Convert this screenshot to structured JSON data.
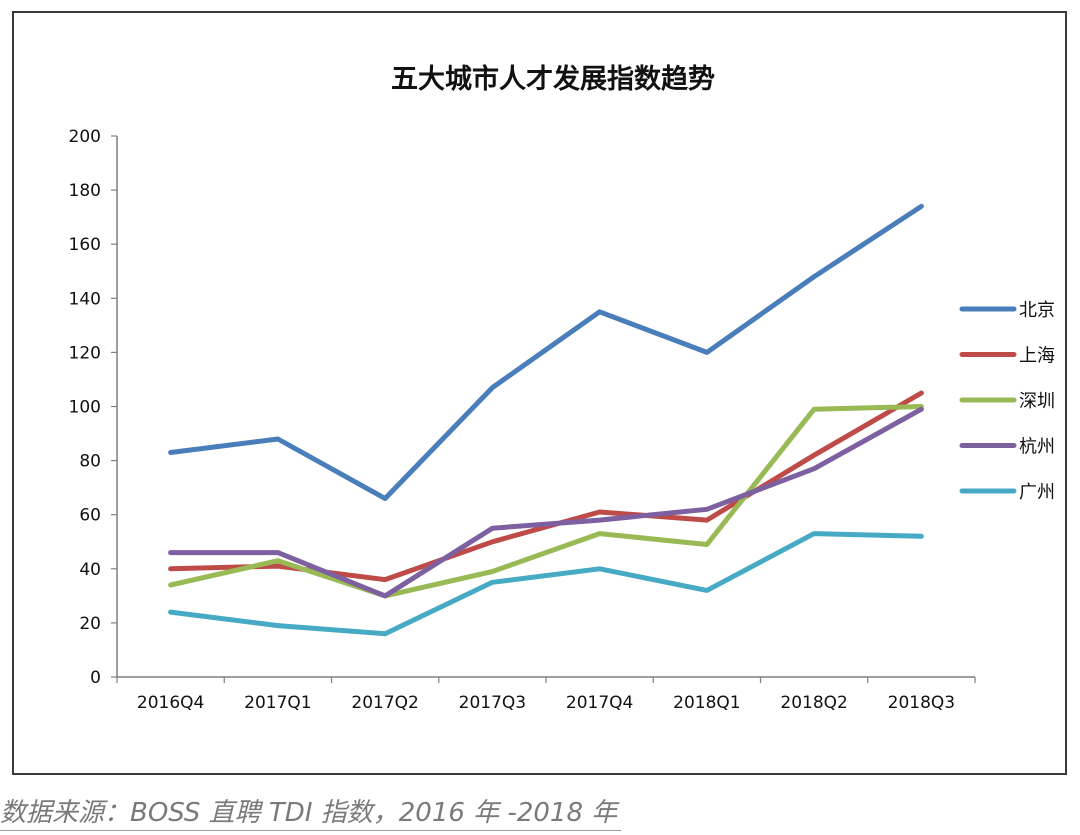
{
  "chart_data": {
    "type": "line",
    "title": "五大城市人才发展指数趋势",
    "categories": [
      "2016Q4",
      "2017Q1",
      "2017Q2",
      "2017Q3",
      "2017Q4",
      "2018Q1",
      "2018Q2",
      "2018Q3"
    ],
    "ylim": [
      0,
      200
    ],
    "yticks": [
      "0",
      "20",
      "40",
      "60",
      "80",
      "100",
      "120",
      "140",
      "160",
      "180",
      "200"
    ],
    "grid": false,
    "legend_position": "right",
    "series": [
      {
        "name": "北京",
        "color": "#4a7ebb",
        "values": [
          83,
          88,
          66,
          107,
          135,
          120,
          148,
          174
        ]
      },
      {
        "name": "上海",
        "color": "#be4b48",
        "values": [
          40,
          41,
          36,
          50,
          61,
          58,
          82,
          105
        ]
      },
      {
        "name": "深圳",
        "color": "#98b954",
        "values": [
          34,
          43,
          30,
          39,
          53,
          49,
          99,
          100
        ]
      },
      {
        "name": "杭州",
        "color": "#7d60a0",
        "values": [
          46,
          46,
          30,
          55,
          58,
          62,
          77,
          99
        ]
      },
      {
        "name": "广州",
        "color": "#46aac5",
        "values": [
          24,
          19,
          16,
          35,
          40,
          32,
          53,
          52
        ]
      }
    ]
  },
  "source_text": "数据来源：BOSS 直聘 TDI 指数，2016 年 -2018 年"
}
